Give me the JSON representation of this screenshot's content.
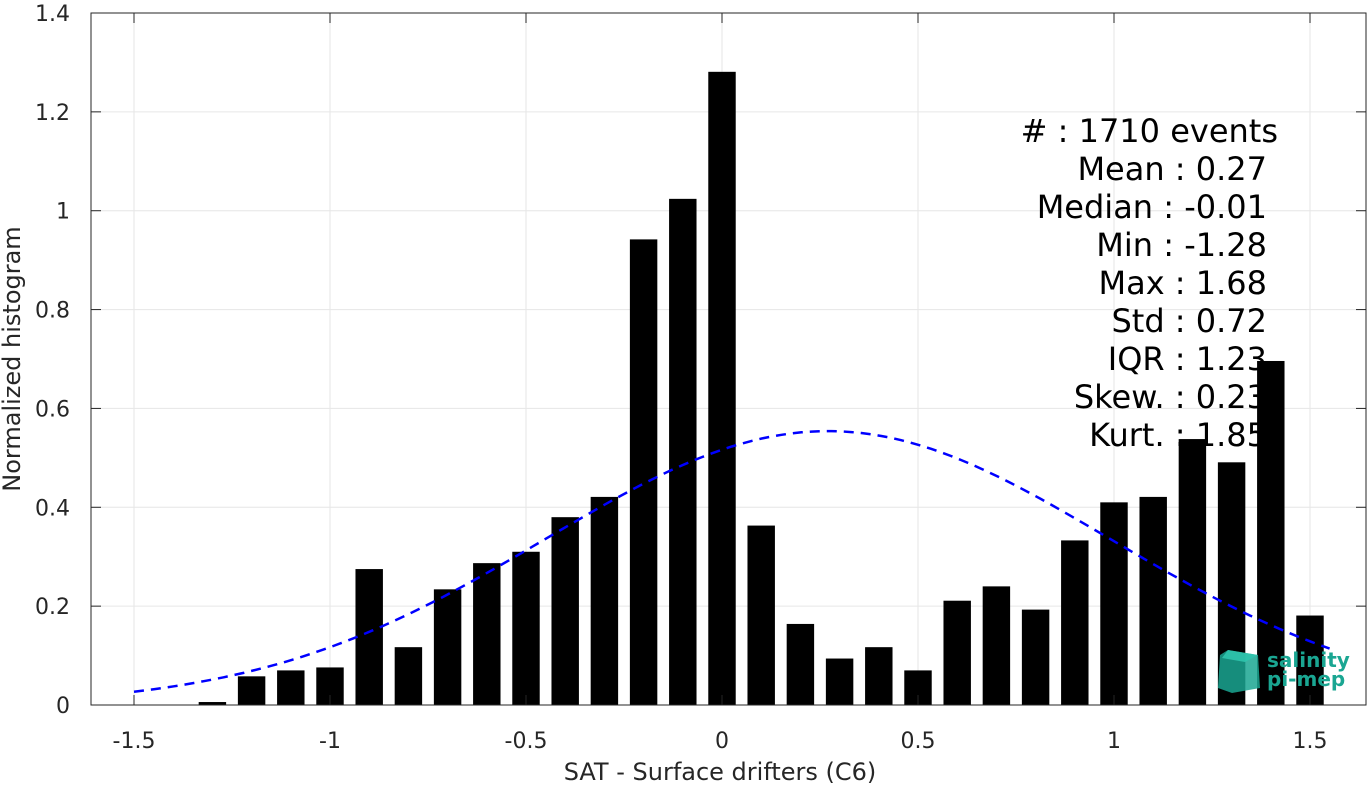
{
  "chart_data": {
    "type": "bar",
    "xlabel": "SAT - Surface drifters (C6)",
    "ylabel": "Normalized histogram",
    "xlim": [
      -1.5,
      1.5
    ],
    "ylim": [
      0,
      1.4
    ],
    "xticks": [
      -1.5,
      -1,
      -0.5,
      0,
      0.5,
      1,
      1.5
    ],
    "xtick_labels": [
      "-1.5",
      "-1",
      "-0.5",
      "0",
      "0.5",
      "1",
      "1.5"
    ],
    "yticks": [
      0,
      0.2,
      0.4,
      0.6,
      0.8,
      1,
      1.2,
      1.4
    ],
    "ytick_labels": [
      "0",
      "0.2",
      "0.4",
      "0.6",
      "0.8",
      "1",
      "1.2",
      "1.4"
    ],
    "grid": true,
    "bar_width": 0.07,
    "bar_color": "#000000",
    "bins": [
      {
        "x": -1.4,
        "value": 0.0
      },
      {
        "x": -1.3,
        "value": 0.006
      },
      {
        "x": -1.2,
        "value": 0.058
      },
      {
        "x": -1.1,
        "value": 0.07
      },
      {
        "x": -1.0,
        "value": 0.076
      },
      {
        "x": -0.9,
        "value": 0.275
      },
      {
        "x": -0.8,
        "value": 0.117
      },
      {
        "x": -0.7,
        "value": 0.234
      },
      {
        "x": -0.6,
        "value": 0.287
      },
      {
        "x": -0.5,
        "value": 0.31
      },
      {
        "x": -0.4,
        "value": 0.38
      },
      {
        "x": -0.3,
        "value": 0.421
      },
      {
        "x": -0.2,
        "value": 0.942
      },
      {
        "x": -0.1,
        "value": 1.024
      },
      {
        "x": 0.0,
        "value": 1.281
      },
      {
        "x": 0.1,
        "value": 0.363
      },
      {
        "x": 0.2,
        "value": 0.164
      },
      {
        "x": 0.3,
        "value": 0.094
      },
      {
        "x": 0.4,
        "value": 0.117
      },
      {
        "x": 0.5,
        "value": 0.07
      },
      {
        "x": 0.6,
        "value": 0.211
      },
      {
        "x": 0.7,
        "value": 0.24
      },
      {
        "x": 0.8,
        "value": 0.193
      },
      {
        "x": 0.9,
        "value": 0.333
      },
      {
        "x": 1.0,
        "value": 0.41
      },
      {
        "x": 1.1,
        "value": 0.421
      },
      {
        "x": 1.2,
        "value": 0.538
      },
      {
        "x": 1.3,
        "value": 0.491
      },
      {
        "x": 1.4,
        "value": 0.696
      },
      {
        "x": 1.5,
        "value": 0.181
      }
    ],
    "fit_curve": {
      "style": "dashed",
      "color": "#0000ff",
      "mean": 0.27,
      "std": 0.72,
      "x_range": [
        -1.5,
        1.55
      ]
    },
    "stats": [
      "#  : 1710 events",
      "Mean : 0.27",
      "Median : -0.01",
      "Min : -1.28",
      "Max : 1.68",
      "Std : 0.72",
      "IQR : 1.23",
      "Skew. : 0.23",
      "Kurt. : 1.85"
    ]
  },
  "logo": {
    "line1": "salinity",
    "line2": "pi-mep",
    "color": "#1aa692"
  }
}
